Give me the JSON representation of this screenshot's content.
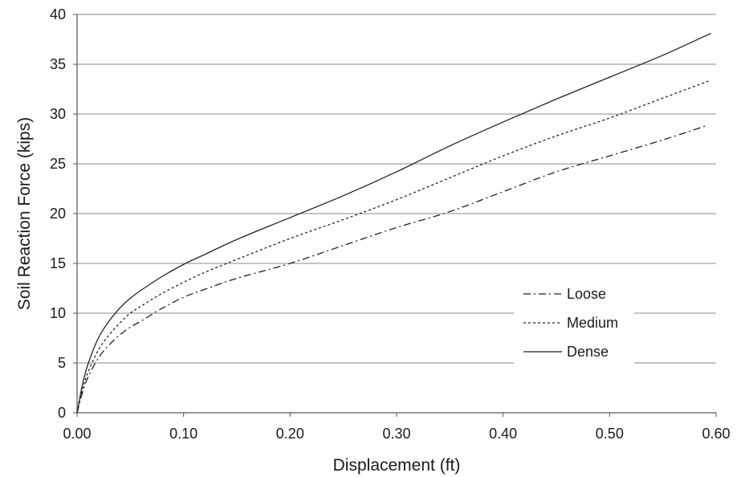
{
  "chart_data": {
    "type": "line",
    "title": "",
    "xlabel": "Displacement (ft)",
    "ylabel": "Soil Reaction Force (kips)",
    "xlim": [
      0,
      0.6
    ],
    "ylim": [
      0,
      40
    ],
    "x_ticks": [
      "0.00",
      "0.10",
      "0.20",
      "0.30",
      "0.40",
      "0.50",
      "0.60"
    ],
    "y_ticks": [
      "0",
      "5",
      "10",
      "15",
      "20",
      "25",
      "30",
      "35",
      "40"
    ],
    "grid": "horizontal",
    "legend_position": "right, middle",
    "series": [
      {
        "name": "Loose",
        "line_style": "dash-dot",
        "color": "#222222",
        "x": [
          0,
          0.005,
          0.01,
          0.02,
          0.03,
          0.04,
          0.05,
          0.06,
          0.08,
          0.1,
          0.12,
          0.15,
          0.2,
          0.25,
          0.3,
          0.35,
          0.4,
          0.45,
          0.5,
          0.55,
          0.59
        ],
        "y": [
          0,
          2.0,
          3.5,
          5.5,
          6.8,
          7.8,
          8.6,
          9.2,
          10.5,
          11.6,
          12.4,
          13.5,
          15.0,
          16.8,
          18.6,
          20.2,
          22.2,
          24.2,
          25.8,
          27.4,
          28.8
        ]
      },
      {
        "name": "Medium",
        "line_style": "dotted",
        "color": "#222222",
        "x": [
          0,
          0.005,
          0.01,
          0.02,
          0.03,
          0.04,
          0.05,
          0.06,
          0.08,
          0.1,
          0.12,
          0.15,
          0.2,
          0.25,
          0.3,
          0.35,
          0.4,
          0.45,
          0.5,
          0.55,
          0.595
        ],
        "y": [
          0,
          2.3,
          4.0,
          6.3,
          7.8,
          9.0,
          10.0,
          10.7,
          12.0,
          13.1,
          14.1,
          15.4,
          17.5,
          19.4,
          21.4,
          23.6,
          25.8,
          27.8,
          29.6,
          31.6,
          33.4
        ]
      },
      {
        "name": "Dense",
        "line_style": "solid",
        "color": "#222222",
        "x": [
          0,
          0.005,
          0.01,
          0.02,
          0.03,
          0.04,
          0.05,
          0.06,
          0.08,
          0.1,
          0.12,
          0.15,
          0.2,
          0.25,
          0.3,
          0.35,
          0.4,
          0.45,
          0.5,
          0.55,
          0.595
        ],
        "y": [
          0,
          2.8,
          4.8,
          7.5,
          9.2,
          10.5,
          11.5,
          12.3,
          13.7,
          14.9,
          15.9,
          17.4,
          19.6,
          21.8,
          24.2,
          26.8,
          29.2,
          31.5,
          33.7,
          35.9,
          38.1
        ]
      }
    ]
  }
}
